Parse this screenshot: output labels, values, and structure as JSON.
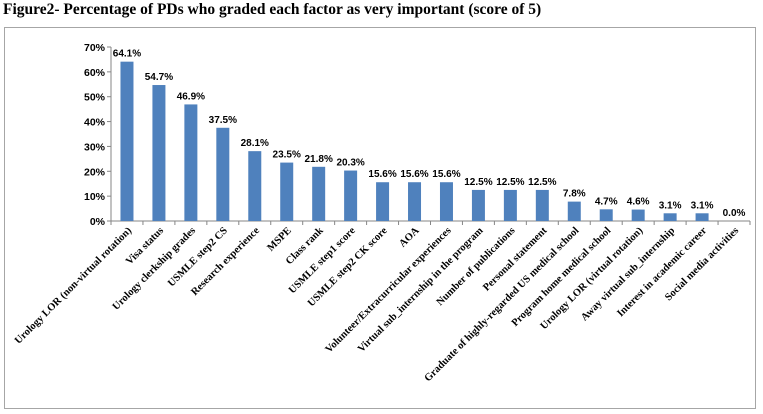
{
  "figure": {
    "title": "Figure2- Percentage of PDs who graded each factor as very important (score of 5)"
  },
  "colors": {
    "bar": "#4F81BD",
    "axis": "#868686",
    "frame": "#a6a6a6"
  },
  "chart_data": {
    "type": "bar",
    "title": "Figure2- Percentage of PDs who graded each factor as very important (score of 5)",
    "xlabel": "",
    "ylabel": "",
    "ylim": [
      0,
      70
    ],
    "yticks": [
      0,
      10,
      20,
      30,
      40,
      50,
      60,
      70
    ],
    "ytick_labels": [
      "0%",
      "10%",
      "20%",
      "30%",
      "40%",
      "50%",
      "60%",
      "70%"
    ],
    "grid": false,
    "categories": [
      "Urology LOR (non-virtual rotation)",
      "Visa status",
      "Urology clerkship grades",
      "USMLE step2 CS",
      "Research experience",
      "MSPE",
      "Class rank",
      "USMLE step1 score",
      "USMLE step2 CK score",
      "AOA",
      "Volunteer/Extracurricular experiences",
      "Virtual sub_internship in the program",
      "Number of publications",
      "Personal statement",
      "Graduate of highly-regarded US medical school",
      "Program home medical school",
      "Urology LOR (virtual rotation)",
      "Away virtual sub_internship",
      "Interest in academic career",
      "Social media activities"
    ],
    "values": [
      64.1,
      54.7,
      46.9,
      37.5,
      28.1,
      23.5,
      21.8,
      20.3,
      15.6,
      15.6,
      15.6,
      12.5,
      12.5,
      12.5,
      7.8,
      4.7,
      4.6,
      3.1,
      3.1,
      0.0
    ],
    "data_labels": [
      "64.1%",
      "54.7%",
      "46.9%",
      "37.5%",
      "28.1%",
      "23.5%",
      "21.8%",
      "20.3%",
      "15.6%",
      "15.6%",
      "15.6%",
      "12.5%",
      "12.5%",
      "12.5%",
      "7.8%",
      "4.7%",
      "4.6%",
      "3.1%",
      "3.1%",
      "0.0%"
    ]
  }
}
